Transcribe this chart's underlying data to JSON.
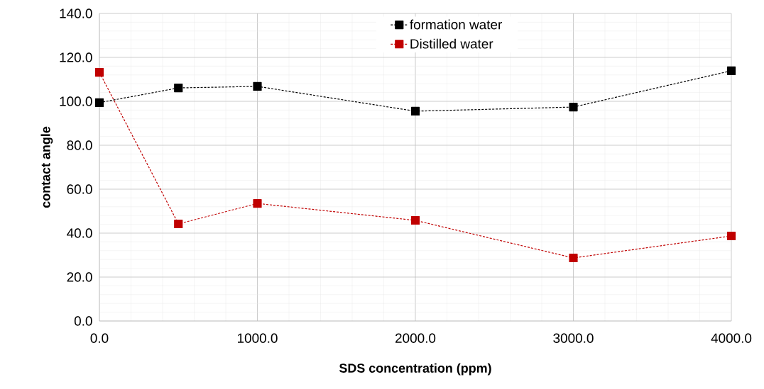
{
  "chart_data": {
    "type": "line",
    "xlabel": "SDS concentration (ppm)",
    "ylabel": "contact angle",
    "x": [
      0,
      500,
      1000,
      2000,
      3000,
      4000
    ],
    "series": [
      {
        "name": "formation water",
        "color": "#000000",
        "values": [
          99.4,
          106.1,
          106.8,
          95.5,
          97.4,
          113.9
        ]
      },
      {
        "name": "Distilled water",
        "color": "#c00000",
        "values": [
          113.2,
          44.2,
          53.5,
          45.8,
          28.7,
          38.7
        ]
      }
    ],
    "xlim": [
      0,
      4000
    ],
    "ylim": [
      0,
      140
    ],
    "xticks": [
      {
        "value": 0,
        "label": "0.0"
      },
      {
        "value": 1000,
        "label": "1000.0"
      },
      {
        "value": 2000,
        "label": "2000.0"
      },
      {
        "value": 3000,
        "label": "3000.0"
      },
      {
        "value": 4000,
        "label": "4000.0"
      }
    ],
    "yticks": [
      {
        "value": 0,
        "label": "0.0"
      },
      {
        "value": 20,
        "label": "20.0"
      },
      {
        "value": 40,
        "label": "40.0"
      },
      {
        "value": 60,
        "label": "60.0"
      },
      {
        "value": 80,
        "label": "80.0"
      },
      {
        "value": 100,
        "label": "100.0"
      },
      {
        "value": 120,
        "label": "120.0"
      },
      {
        "value": 140,
        "label": "140.0"
      }
    ],
    "grid": true,
    "legend": "top",
    "marker": "square",
    "line_style": "dashed"
  }
}
